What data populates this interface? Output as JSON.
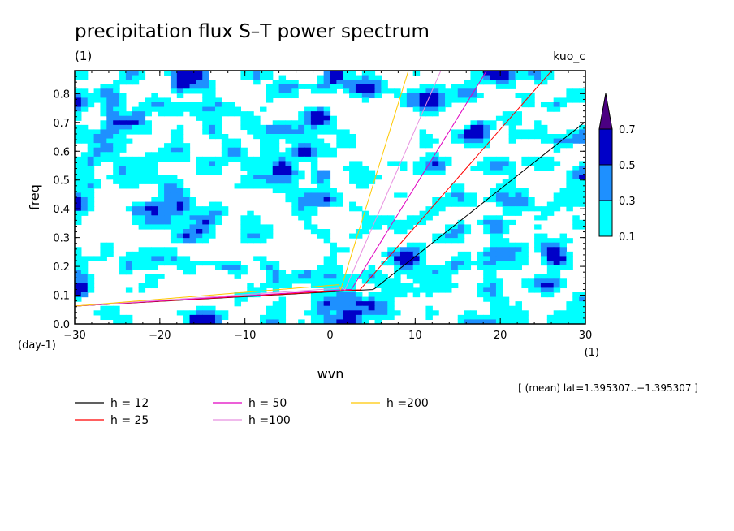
{
  "chart_data": {
    "type": "heatmap",
    "title": "precipitation flux S–T power spectrum",
    "subtitle_left": "(1)",
    "subtitle_right": "kuo_c",
    "xlabel": "wvn",
    "ylabel": "freq",
    "x_unit": "(1)",
    "y_unit": "(day-1)",
    "xlim": [
      -30,
      30
    ],
    "ylim": [
      0,
      0.88
    ],
    "x_ticks": [
      -30,
      -20,
      -10,
      0,
      10,
      20,
      30
    ],
    "x_tick_labels": [
      "−30",
      "−20",
      "−10",
      "0",
      "10",
      "20",
      "30"
    ],
    "y_ticks": [
      0.0,
      0.1,
      0.2,
      0.3,
      0.4,
      0.5,
      0.6,
      0.7,
      0.8
    ],
    "y_tick_labels": [
      "0.0",
      "0.1",
      "0.2",
      "0.3",
      "0.4",
      "0.5",
      "0.6",
      "0.7",
      "0.8"
    ],
    "colorbar": {
      "levels": [
        0.1,
        0.3,
        0.5,
        0.7
      ],
      "labels": [
        "0.1",
        "0.3",
        "0.5",
        "0.7"
      ],
      "colors": [
        "#00ffff",
        "#1e90ff",
        "#0000c8",
        "#4b0082"
      ]
    },
    "annotation": "[ (mean) lat=1.395307..−1.395307 ]",
    "series": [
      {
        "name": "h = 12",
        "h": 12,
        "color": "#000000"
      },
      {
        "name": "h = 25",
        "h": 25,
        "color": "#ff0000"
      },
      {
        "name": "h = 50",
        "h": 50,
        "color": "#e000c0"
      },
      {
        "name": "h =100",
        "h": 100,
        "color": "#e890e0"
      },
      {
        "name": "h =200",
        "h": 200,
        "color": "#ffc800"
      }
    ]
  }
}
